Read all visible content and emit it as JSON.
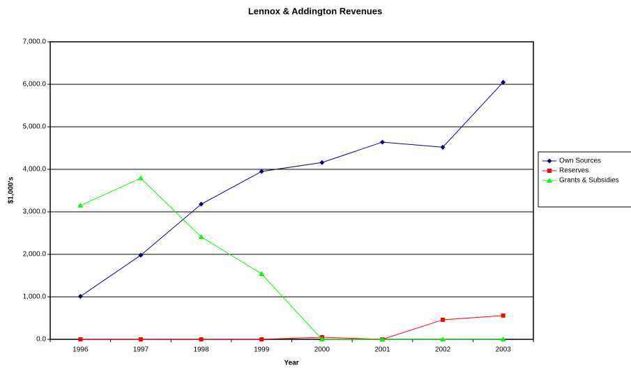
{
  "chart_data": {
    "type": "line",
    "title": "Lennox & Addington Revenues",
    "x_label": "Year",
    "y_label": "$1,000's",
    "categories": [
      "1996",
      "1997",
      "1998",
      "1999",
      "2000",
      "2001",
      "2002",
      "2003"
    ],
    "series": [
      {
        "name": "Own  Sources",
        "color": "#000080",
        "marker": "diamond",
        "values": [
          1010,
          1980,
          3180,
          3950,
          4160,
          4640,
          4520,
          6050
        ]
      },
      {
        "name": "Reserves",
        "color": "#ff0000",
        "marker": "square",
        "values": [
          0,
          0,
          0,
          0,
          50,
          0,
          460,
          560
        ]
      },
      {
        "name": "Grants & Subsidies",
        "color": "#00ff00",
        "marker": "triangle",
        "values": [
          3150,
          3790,
          2410,
          1540,
          0,
          0,
          0,
          0
        ]
      }
    ],
    "ylim": [
      0,
      7000
    ],
    "yticks": [
      {
        "value": 0,
        "label": "0.0"
      },
      {
        "value": 1000,
        "label": "1,000.0"
      },
      {
        "value": 2000,
        "label": "2,000.0"
      },
      {
        "value": 3000,
        "label": "3,000.0"
      },
      {
        "value": 4000,
        "label": "4,000.0"
      },
      {
        "value": 5000,
        "label": "5,000.0"
      },
      {
        "value": 6000,
        "label": "6,000.0"
      },
      {
        "value": 7000,
        "label": "7,000.0"
      }
    ],
    "grid": true,
    "legend": "right"
  }
}
